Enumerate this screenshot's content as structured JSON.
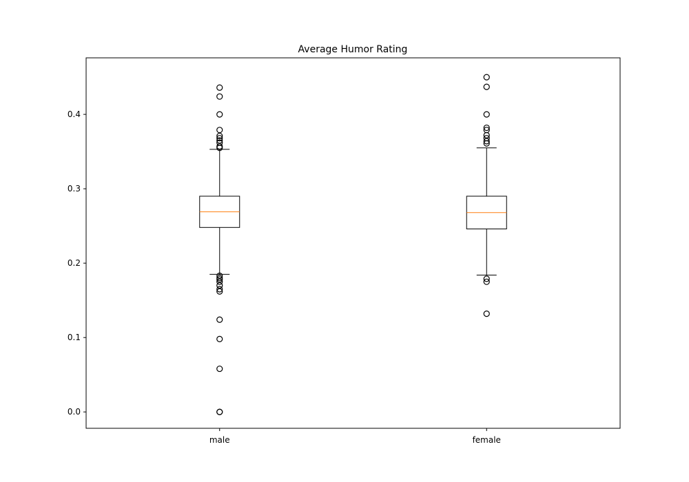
{
  "chart_data": {
    "type": "box",
    "title": "Average Humor Rating",
    "xlabel": "",
    "ylabel": "",
    "ylim": [
      -0.022,
      0.476
    ],
    "y_ticks": [
      0.0,
      0.1,
      0.2,
      0.3,
      0.4
    ],
    "y_tick_labels": [
      "0.0",
      "0.1",
      "0.2",
      "0.3",
      "0.4"
    ],
    "grid": false,
    "categories": [
      "male",
      "female"
    ],
    "boxes": [
      {
        "category": "male",
        "whisker_low": 0.185,
        "q1": 0.248,
        "median": 0.269,
        "q3": 0.29,
        "whisker_high": 0.353,
        "outliers": [
          0.436,
          0.424,
          0.4,
          0.379,
          0.371,
          0.368,
          0.365,
          0.362,
          0.357,
          0.355,
          0.183,
          0.18,
          0.178,
          0.175,
          0.17,
          0.165,
          0.162,
          0.124,
          0.098,
          0.058,
          0.0,
          0.0
        ]
      },
      {
        "category": "female",
        "whisker_low": 0.184,
        "q1": 0.246,
        "median": 0.268,
        "q3": 0.29,
        "whisker_high": 0.355,
        "outliers": [
          0.45,
          0.437,
          0.4,
          0.382,
          0.379,
          0.372,
          0.368,
          0.364,
          0.361,
          0.179,
          0.175,
          0.132
        ]
      }
    ],
    "colors": {
      "box": "#000000",
      "median": "#ff7f0e",
      "outlier": "#000000"
    }
  }
}
